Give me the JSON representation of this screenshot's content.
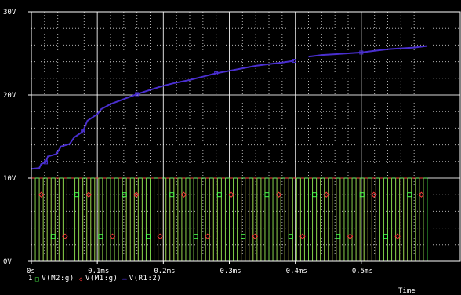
{
  "chart_data": {
    "type": "line",
    "xlabel": "Time",
    "ylabel": "",
    "xlim": [
      0,
      0.6
    ],
    "ylim": [
      0,
      30
    ],
    "yticks": [
      0,
      10,
      20,
      30
    ],
    "ytick_labels": [
      "0V",
      "10V",
      "20V",
      "30V"
    ],
    "xticks": [
      0,
      0.1,
      0.2,
      0.3,
      0.4,
      0.5
    ],
    "xtick_labels": [
      "0s",
      "0.1ms",
      "0.2ms",
      "0.3ms",
      "0.4ms",
      "0.5ms"
    ],
    "grid": true,
    "legend_position": "bottom-left",
    "series": [
      {
        "name": "V(R1:2)",
        "color": "#4a2fd0",
        "marker": "square",
        "x": [
          0,
          0.012,
          0.015,
          0.022,
          0.025,
          0.038,
          0.045,
          0.058,
          0.065,
          0.078,
          0.085,
          0.1,
          0.106,
          0.12,
          0.14,
          0.16,
          0.18,
          0.2,
          0.215,
          0.24,
          0.26,
          0.28,
          0.3,
          0.32,
          0.34,
          0.36,
          0.38,
          0.398,
          0.402,
          0.42,
          0.44,
          0.46,
          0.48,
          0.5,
          0.52,
          0.54,
          0.56,
          0.58,
          0.6
        ],
        "values": [
          11.1,
          11.2,
          11.7,
          11.9,
          12.6,
          12.9,
          13.8,
          14.1,
          14.9,
          15.6,
          16.9,
          17.7,
          18.3,
          18.9,
          19.5,
          20.1,
          20.6,
          21.1,
          21.4,
          21.8,
          22.2,
          22.6,
          22.9,
          23.2,
          23.5,
          23.7,
          23.9,
          24.1,
          null,
          24.6,
          24.8,
          24.9,
          25.0,
          25.1,
          25.3,
          25.5,
          25.6,
          25.7,
          25.9
        ]
      },
      {
        "name": "V(M1:g)",
        "color": "#ff3b3b",
        "marker": "diamond",
        "waveform": "square",
        "low": 0,
        "high": 10,
        "period_ms": 0.012,
        "duty": 0.5
      },
      {
        "name": "V(M2:g)",
        "color": "#4cff4c",
        "marker": "square",
        "waveform": "square",
        "low": 0,
        "high": 10,
        "period_ms": 0.012,
        "duty": 0.5,
        "phase": 0.5
      }
    ],
    "colors": {
      "background": "#000000",
      "frame": "#ffffff",
      "grid": "#ffffff"
    }
  },
  "legend": {
    "items": [
      {
        "prefix": "1",
        "symbol": "□",
        "label": "V(M2:g)",
        "color": "#4cff4c"
      },
      {
        "prefix": "",
        "symbol": "◇",
        "label": "V(M1:g)",
        "color": "#ff3b3b"
      },
      {
        "prefix": "",
        "symbol": "▭",
        "label": "V(R1:2)",
        "color": "#4a2fd0"
      }
    ]
  }
}
